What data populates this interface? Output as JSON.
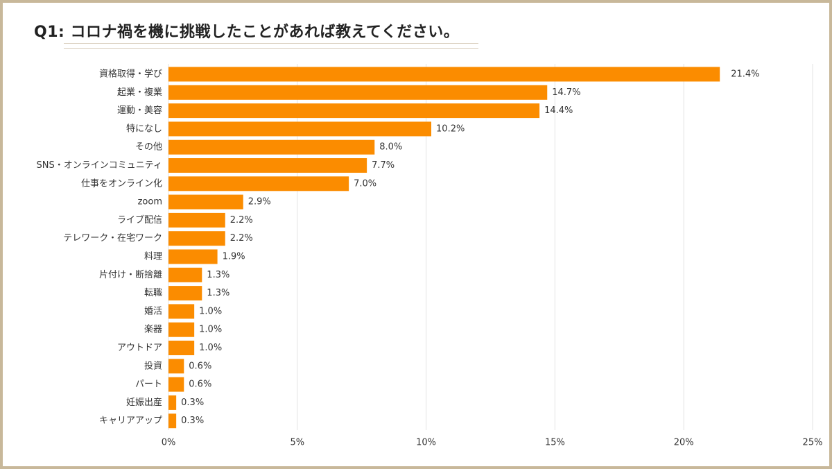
{
  "title": "Q1: コロナ禍を機に挑戦したことがあれば教えてください。",
  "colors": {
    "bar": "#fb8c00",
    "grid": "#e3e3e3",
    "frame": "#c8b89a"
  },
  "chart_data": {
    "type": "bar",
    "orientation": "horizontal",
    "categories": [
      "資格取得・学び",
      "起業・複業",
      "運動・美容",
      "特になし",
      "その他",
      "SNS・オンラインコミュニティ",
      "仕事をオンライン化",
      "zoom",
      "ライブ配信",
      "テレワーク・在宅ワーク",
      "料理",
      "片付け・断捨離",
      "転職",
      "婚活",
      "楽器",
      "アウトドア",
      "投資",
      "パート",
      "妊娠出産",
      "キャリアアップ"
    ],
    "values": [
      21.4,
      14.7,
      14.4,
      10.2,
      8.0,
      7.7,
      7.0,
      2.9,
      2.2,
      2.2,
      1.9,
      1.3,
      1.3,
      1.0,
      1.0,
      1.0,
      0.6,
      0.6,
      0.3,
      0.3
    ],
    "value_labels": [
      "21.4%",
      "14.7%",
      "14.4%",
      "10.2%",
      "8.0%",
      "7.7%",
      "7.0%",
      "2.9%",
      "2.2%",
      "2.2%",
      "1.9%",
      "1.3%",
      "1.3%",
      "1.0%",
      "1.0%",
      "1.0%",
      "0.6%",
      "0.6%",
      "0.3%",
      "0.3%"
    ],
    "xlim": [
      0,
      25
    ],
    "xticks": [
      "0%",
      "5%",
      "10%",
      "15%",
      "20%",
      "25%"
    ],
    "grid": true,
    "legend": "none"
  }
}
